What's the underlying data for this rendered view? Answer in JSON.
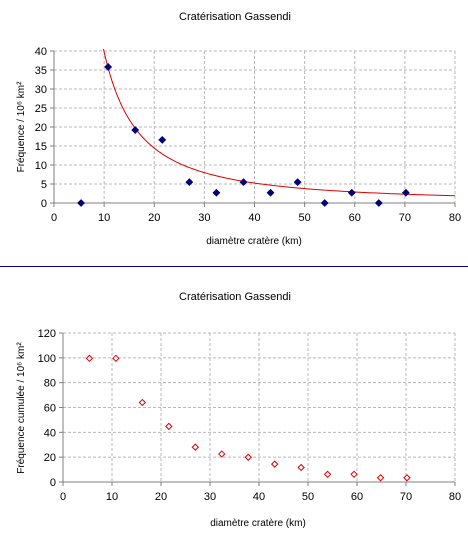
{
  "colors": {
    "background": "#ffffff",
    "gridline": "#b8b8b8",
    "axis": "#808080",
    "separator": "#000080",
    "chart1_points": "#00007a",
    "chart1_fit": "#e00000",
    "chart2_points": "#e00000"
  },
  "chart_data": [
    {
      "type": "scatter",
      "title": "Cratérisation Gassendi",
      "xlabel": "diamètre cratère (km)",
      "ylabel": "Fréquence / 10⁶ km²",
      "xlim": [
        0,
        80
      ],
      "ylim": [
        0,
        40
      ],
      "xticks": [
        "0",
        "10",
        "20",
        "30",
        "40",
        "50",
        "60",
        "70",
        "80"
      ],
      "yticks": [
        "0",
        "5",
        "10",
        "15",
        "20",
        "25",
        "30",
        "35",
        "40"
      ],
      "grid": true,
      "legend": "none",
      "marker": "filled-diamond",
      "series": [
        {
          "x": [
            5.4,
            10.8,
            16.2,
            21.6,
            27,
            32.4,
            37.8,
            43.2,
            48.6,
            54,
            59.4,
            64.8,
            70.2
          ],
          "y": [
            0,
            35.8,
            19.2,
            16.6,
            5.5,
            2.7,
            5.5,
            2.7,
            5.5,
            0,
            2.7,
            0,
            2.7
          ]
        }
      ],
      "trendline": {
        "type": "power",
        "coefficient": 1146,
        "exponent": -1.46,
        "x_range": [
          9.6,
          80
        ]
      }
    },
    {
      "type": "scatter",
      "title": "Cratérisation Gassendi",
      "xlabel": "diamètre cratère (km)",
      "ylabel": "Fréquence cumulée / 10⁶ km²",
      "xlim": [
        0,
        80
      ],
      "ylim": [
        0,
        120
      ],
      "xticks": [
        "0",
        "10",
        "20",
        "30",
        "40",
        "50",
        "60",
        "70",
        "80"
      ],
      "yticks": [
        "0",
        "20",
        "40",
        "60",
        "80",
        "100",
        "120"
      ],
      "grid": true,
      "legend": "none",
      "marker": "hollow-diamond",
      "series": [
        {
          "x": [
            5.4,
            10.8,
            16.2,
            21.6,
            27,
            32.4,
            37.8,
            43.2,
            48.6,
            54,
            59.4,
            64.8,
            70.2
          ],
          "y": [
            99.6,
            99.6,
            64,
            44.8,
            28.1,
            22.6,
            19.9,
            14.4,
            11.7,
            6.2,
            6.2,
            3.4,
            3.4
          ]
        }
      ]
    }
  ]
}
